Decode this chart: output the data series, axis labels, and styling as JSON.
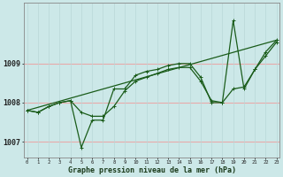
{
  "xlabel": "Graphe pression niveau de la mer (hPa)",
  "background_color": "#cce8e8",
  "grid_color_h": "#e8aaaa",
  "grid_color_v": "#b8d8d8",
  "line_color": "#1a5c1a",
  "x_ticks": [
    0,
    1,
    2,
    3,
    4,
    5,
    6,
    7,
    8,
    9,
    10,
    11,
    12,
    13,
    14,
    15,
    16,
    17,
    18,
    19,
    20,
    21,
    22,
    23
  ],
  "ylim": [
    1006.6,
    1010.55
  ],
  "yticks": [
    1007,
    1008,
    1009
  ],
  "series": [
    {
      "x": [
        0,
        1,
        2,
        3,
        4,
        5,
        6,
        7,
        8,
        9,
        10,
        11,
        12,
        13,
        14,
        15,
        16,
        17,
        18,
        19,
        20,
        21,
        22,
        23
      ],
      "y": [
        1007.8,
        1007.75,
        1007.9,
        1008.0,
        1008.05,
        1007.75,
        1007.65,
        1007.65,
        1007.9,
        1008.3,
        1008.55,
        1008.65,
        1008.75,
        1008.85,
        1008.9,
        1008.9,
        1008.55,
        1008.05,
        1008.0,
        1008.35,
        1008.4,
        1008.85,
        1009.2,
        1009.55
      ]
    },
    {
      "x": [
        0,
        1,
        2,
        3,
        4,
        5,
        6,
        7,
        8,
        9,
        10,
        11,
        12,
        13,
        14,
        15,
        16,
        17,
        18,
        19,
        20,
        21,
        22,
        23
      ],
      "y": [
        1007.8,
        1007.75,
        1007.9,
        1008.0,
        1008.05,
        1006.85,
        1007.55,
        1007.55,
        1008.35,
        1008.35,
        1008.7,
        1008.8,
        1008.85,
        1008.95,
        1009.0,
        1009.0,
        1008.65,
        1008.0,
        1008.0,
        1010.1,
        1008.35,
        1008.85,
        1009.3,
        1009.6
      ]
    },
    {
      "x": [
        0,
        23
      ],
      "y": [
        1007.8,
        1009.6
      ]
    }
  ]
}
